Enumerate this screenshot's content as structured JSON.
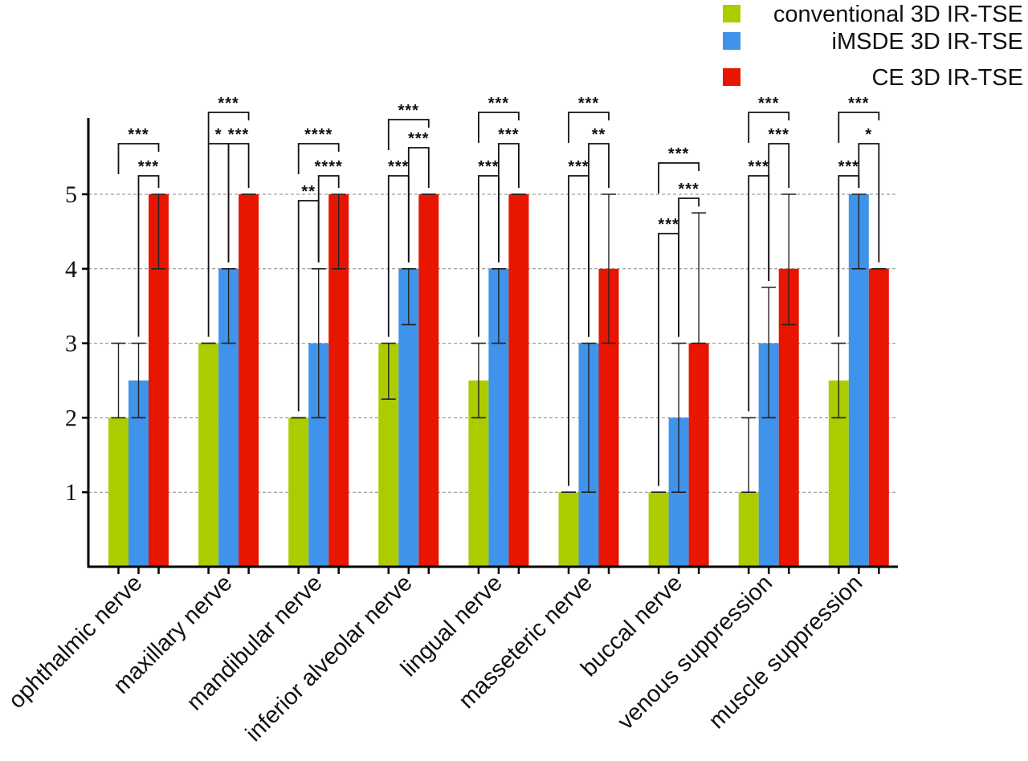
{
  "chart_data": {
    "type": "bar",
    "title": "",
    "xlabel": "",
    "ylabel": "",
    "ylim": [
      0,
      6
    ],
    "yticks": [
      1,
      2,
      3,
      4,
      5
    ],
    "grid": true,
    "legend_position": "top-right",
    "categories": [
      "ophthalmic nerve",
      "maxillary nerve",
      "mandibular nerve",
      "inferior alveolar nerve",
      "lingual nerve",
      "masseteric nerve",
      "buccal nerve",
      "venous suppression",
      "muscle suppression"
    ],
    "series": [
      {
        "name": "conventional 3D IR-TSE",
        "color": "#adcc00",
        "values": [
          2,
          3,
          2,
          3,
          2.5,
          1,
          1,
          1,
          2.5
        ],
        "error_low": [
          2,
          3,
          2,
          2.25,
          2,
          1,
          1,
          1,
          2
        ],
        "error_high": [
          3,
          3,
          2,
          3,
          3,
          1,
          1,
          2,
          3
        ]
      },
      {
        "name": "iMSDE 3D IR-TSE",
        "color": "#3f93ea",
        "values": [
          2.5,
          4,
          3,
          4,
          4,
          3,
          2,
          3,
          5
        ],
        "error_low": [
          2,
          3,
          2,
          3.25,
          3,
          1,
          1,
          2,
          4
        ],
        "error_high": [
          3,
          4,
          4,
          4,
          4,
          3,
          3,
          3.75,
          5
        ]
      },
      {
        "name": "CE 3D IR-TSE",
        "color": "#e81500",
        "values": [
          5,
          5,
          5,
          5,
          5,
          4,
          3,
          4,
          4
        ],
        "error_low": [
          4,
          5,
          4,
          5,
          5,
          3,
          3,
          3.25,
          4
        ],
        "error_high": [
          5,
          5,
          5,
          5,
          5,
          5,
          4.75,
          5,
          4
        ]
      }
    ],
    "significance": [
      [
        {
          "pair": [
            0,
            2
          ],
          "label": "***"
        },
        {
          "pair": [
            1,
            2
          ],
          "label": "***"
        }
      ],
      [
        {
          "pair": [
            0,
            2
          ],
          "label": "***"
        },
        {
          "pair": [
            0,
            1
          ],
          "label": "*"
        },
        {
          "pair": [
            1,
            2
          ],
          "label": "***"
        }
      ],
      [
        {
          "pair": [
            0,
            2
          ],
          "label": "****"
        },
        {
          "pair": [
            1,
            2
          ],
          "label": "****"
        },
        {
          "pair": [
            0,
            1
          ],
          "label": "**"
        }
      ],
      [
        {
          "pair": [
            0,
            2
          ],
          "label": "***"
        },
        {
          "pair": [
            1,
            2
          ],
          "label": "***"
        },
        {
          "pair": [
            0,
            1
          ],
          "label": "***"
        }
      ],
      [
        {
          "pair": [
            0,
            2
          ],
          "label": "***"
        },
        {
          "pair": [
            1,
            2
          ],
          "label": "***"
        },
        {
          "pair": [
            0,
            1
          ],
          "label": "***"
        }
      ],
      [
        {
          "pair": [
            0,
            2
          ],
          "label": "***"
        },
        {
          "pair": [
            1,
            2
          ],
          "label": "**"
        },
        {
          "pair": [
            0,
            1
          ],
          "label": "***"
        }
      ],
      [
        {
          "pair": [
            0,
            2
          ],
          "label": "***"
        },
        {
          "pair": [
            1,
            2
          ],
          "label": "***"
        },
        {
          "pair": [
            0,
            1
          ],
          "label": "***"
        }
      ],
      [
        {
          "pair": [
            0,
            2
          ],
          "label": "***"
        },
        {
          "pair": [
            1,
            2
          ],
          "label": "***"
        },
        {
          "pair": [
            0,
            1
          ],
          "label": "***"
        }
      ],
      [
        {
          "pair": [
            0,
            2
          ],
          "label": "***"
        },
        {
          "pair": [
            1,
            2
          ],
          "label": "*"
        },
        {
          "pair": [
            0,
            1
          ],
          "label": "***"
        }
      ]
    ]
  },
  "legend": {
    "items": [
      {
        "label": "conventional 3D IR-TSE",
        "color": "#adcc00"
      },
      {
        "label": "iMSDE 3D IR-TSE",
        "color": "#3f93ea"
      },
      {
        "label": "CE 3D IR-TSE",
        "color": "#e81500"
      }
    ]
  }
}
